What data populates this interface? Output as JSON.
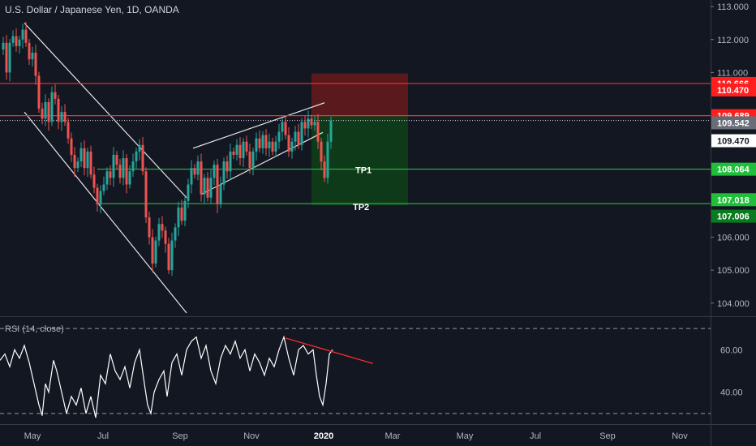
{
  "chart_title": "U.S. Dollar / Japanese Yen, 1D, OANDA",
  "rsi_title": "RSI (14, close)",
  "colors": {
    "background": "#131722",
    "up": "#26a69a",
    "down": "#ef5350",
    "stop_zone": "#5a1a1d",
    "target_zone": "#0f3a1a",
    "line_red": "#ff2b2b",
    "line_green": "#2ecc40",
    "rsi_line": "#ffffff"
  },
  "chart_data": [
    {
      "type": "candlestick",
      "title": "U.S. Dollar / Japanese Yen, 1D, OANDA",
      "x_ticks": [
        "May",
        "Jul",
        "Sep",
        "Nov",
        "2020",
        "Mar",
        "May",
        "Jul",
        "Sep",
        "Nov"
      ],
      "y_ticks": [
        "113.000",
        "112.000",
        "111.000",
        "106.000",
        "105.000",
        "104.000"
      ],
      "ylim": [
        103.6,
        113.2
      ],
      "close_path": [
        [
          0,
          111.7
        ],
        [
          4,
          111.9
        ],
        [
          8,
          111.0
        ],
        [
          12,
          111.9
        ],
        [
          16,
          112.1
        ],
        [
          20,
          111.8
        ],
        [
          24,
          112.0
        ],
        [
          28,
          112.3
        ],
        [
          32,
          111.9
        ],
        [
          36,
          111.4
        ],
        [
          40,
          111.6
        ],
        [
          44,
          110.9
        ],
        [
          48,
          109.9
        ],
        [
          52,
          109.6
        ],
        [
          56,
          110.1
        ],
        [
          60,
          109.5
        ],
        [
          64,
          110.4
        ],
        [
          68,
          110.2
        ],
        [
          72,
          109.5
        ],
        [
          76,
          109.8
        ],
        [
          80,
          109.5
        ],
        [
          84,
          109.0
        ],
        [
          88,
          108.5
        ],
        [
          92,
          108.1
        ],
        [
          96,
          108.3
        ],
        [
          100,
          108.7
        ],
        [
          104,
          108.1
        ],
        [
          108,
          108.6
        ],
        [
          112,
          107.9
        ],
        [
          116,
          107.5
        ],
        [
          120,
          107.0
        ],
        [
          124,
          107.4
        ],
        [
          128,
          107.6
        ],
        [
          132,
          108.0
        ],
        [
          136,
          107.8
        ],
        [
          140,
          108.5
        ],
        [
          144,
          108.2
        ],
        [
          148,
          107.8
        ],
        [
          152,
          108.4
        ],
        [
          156,
          107.6
        ],
        [
          160,
          108.0
        ],
        [
          164,
          108.3
        ],
        [
          168,
          108.6
        ],
        [
          172,
          108.8
        ],
        [
          176,
          108.0
        ],
        [
          180,
          106.6
        ],
        [
          184,
          106.0
        ],
        [
          188,
          105.2
        ],
        [
          192,
          105.9
        ],
        [
          196,
          106.4
        ],
        [
          200,
          106.2
        ],
        [
          204,
          105.8
        ],
        [
          208,
          105.0
        ],
        [
          212,
          105.9
        ],
        [
          216,
          106.3
        ],
        [
          220,
          106.9
        ],
        [
          224,
          106.5
        ],
        [
          228,
          107.1
        ],
        [
          232,
          107.6
        ],
        [
          236,
          108.1
        ],
        [
          240,
          107.9
        ],
        [
          244,
          108.3
        ],
        [
          248,
          107.3
        ],
        [
          252,
          107.8
        ],
        [
          256,
          107.2
        ],
        [
          260,
          107.8
        ],
        [
          264,
          108.2
        ],
        [
          268,
          107.0
        ],
        [
          272,
          107.6
        ],
        [
          276,
          108.3
        ],
        [
          280,
          108.0
        ],
        [
          284,
          108.6
        ],
        [
          288,
          108.5
        ],
        [
          292,
          108.8
        ],
        [
          296,
          108.4
        ],
        [
          300,
          108.9
        ],
        [
          304,
          108.6
        ],
        [
          308,
          108.1
        ],
        [
          312,
          108.6
        ],
        [
          316,
          109.0
        ],
        [
          320,
          108.7
        ],
        [
          324,
          109.1
        ],
        [
          328,
          108.7
        ],
        [
          332,
          108.9
        ],
        [
          336,
          108.6
        ],
        [
          340,
          108.9
        ],
        [
          344,
          109.2
        ],
        [
          348,
          109.5
        ],
        [
          352,
          109.1
        ],
        [
          356,
          108.6
        ],
        [
          360,
          108.9
        ],
        [
          364,
          109.2
        ],
        [
          368,
          108.8
        ],
        [
          372,
          109.5
        ],
        [
          376,
          109.3
        ],
        [
          380,
          109.6
        ],
        [
          384,
          109.4
        ],
        [
          388,
          109.5
        ],
        [
          392,
          108.9
        ],
        [
          396,
          108.3
        ],
        [
          400,
          107.8
        ],
        [
          404,
          108.9
        ],
        [
          408,
          109.54
        ]
      ],
      "lines": {
        "stop_upper": 110.666,
        "entry": 109.689,
        "last_price": 109.542,
        "tp1": 108.064,
        "tp2": 107.018
      },
      "labels": {
        "tp1": "TP1",
        "tp2": "TP2",
        "stop_upper": "110.666",
        "stop_inner": "110.470",
        "entry": "109.689",
        "last": "109.542",
        "mid": "109.470",
        "tp1_price": "108.064",
        "tp2_price": "107.018",
        "tp2_lower": "107.006"
      },
      "zones": {
        "stop": [
          109.689,
          110.97
        ],
        "target": [
          106.97,
          109.689
        ],
        "x_range": [
          384,
          503
        ]
      },
      "trendlines": [
        {
          "name": "down-channel-upper",
          "from": [
            30,
            112.5
          ],
          "to": [
            230,
            107.2
          ]
        },
        {
          "name": "down-channel-lower",
          "from": [
            30,
            109.8
          ],
          "to": [
            230,
            103.7
          ]
        },
        {
          "name": "rising-channel-upper",
          "from": [
            238,
            108.7
          ],
          "to": [
            400,
            110.08
          ]
        },
        {
          "name": "rising-channel-lower",
          "from": [
            248,
            107.3
          ],
          "to": [
            398,
            109.18
          ]
        }
      ]
    },
    {
      "type": "line",
      "title": "RSI (14, close)",
      "y_ticks": [
        "60.00",
        "40.00"
      ],
      "ylim": [
        25,
        75
      ],
      "band_upper": 70,
      "band_lower": 30,
      "values_path": [
        [
          0,
          55
        ],
        [
          6,
          58
        ],
        [
          12,
          52
        ],
        [
          18,
          60
        ],
        [
          24,
          56
        ],
        [
          30,
          62
        ],
        [
          36,
          54
        ],
        [
          42,
          44
        ],
        [
          48,
          34
        ],
        [
          52,
          29
        ],
        [
          56,
          44
        ],
        [
          60,
          40
        ],
        [
          66,
          55
        ],
        [
          70,
          50
        ],
        [
          76,
          40
        ],
        [
          82,
          30
        ],
        [
          88,
          38
        ],
        [
          94,
          34
        ],
        [
          100,
          42
        ],
        [
          106,
          30
        ],
        [
          112,
          38
        ],
        [
          118,
          28
        ],
        [
          124,
          48
        ],
        [
          130,
          44
        ],
        [
          136,
          58
        ],
        [
          142,
          50
        ],
        [
          148,
          46
        ],
        [
          154,
          52
        ],
        [
          160,
          42
        ],
        [
          166,
          54
        ],
        [
          172,
          60
        ],
        [
          178,
          44
        ],
        [
          182,
          34
        ],
        [
          186,
          30
        ],
        [
          190,
          40
        ],
        [
          196,
          46
        ],
        [
          202,
          50
        ],
        [
          206,
          38
        ],
        [
          212,
          54
        ],
        [
          218,
          58
        ],
        [
          224,
          48
        ],
        [
          230,
          60
        ],
        [
          236,
          64
        ],
        [
          242,
          66
        ],
        [
          248,
          56
        ],
        [
          254,
          62
        ],
        [
          260,
          50
        ],
        [
          266,
          44
        ],
        [
          272,
          56
        ],
        [
          278,
          62
        ],
        [
          284,
          58
        ],
        [
          290,
          64
        ],
        [
          296,
          56
        ],
        [
          302,
          60
        ],
        [
          308,
          50
        ],
        [
          314,
          58
        ],
        [
          320,
          54
        ],
        [
          326,
          48
        ],
        [
          332,
          56
        ],
        [
          338,
          52
        ],
        [
          344,
          60
        ],
        [
          350,
          66
        ],
        [
          356,
          56
        ],
        [
          362,
          48
        ],
        [
          368,
          60
        ],
        [
          374,
          62
        ],
        [
          380,
          58
        ],
        [
          386,
          60
        ],
        [
          390,
          48
        ],
        [
          394,
          38
        ],
        [
          398,
          34
        ],
        [
          402,
          44
        ],
        [
          406,
          58
        ],
        [
          410,
          60
        ]
      ],
      "trendline": {
        "from": [
          352,
          65.5
        ],
        "to": [
          460,
          53.5
        ]
      }
    }
  ]
}
